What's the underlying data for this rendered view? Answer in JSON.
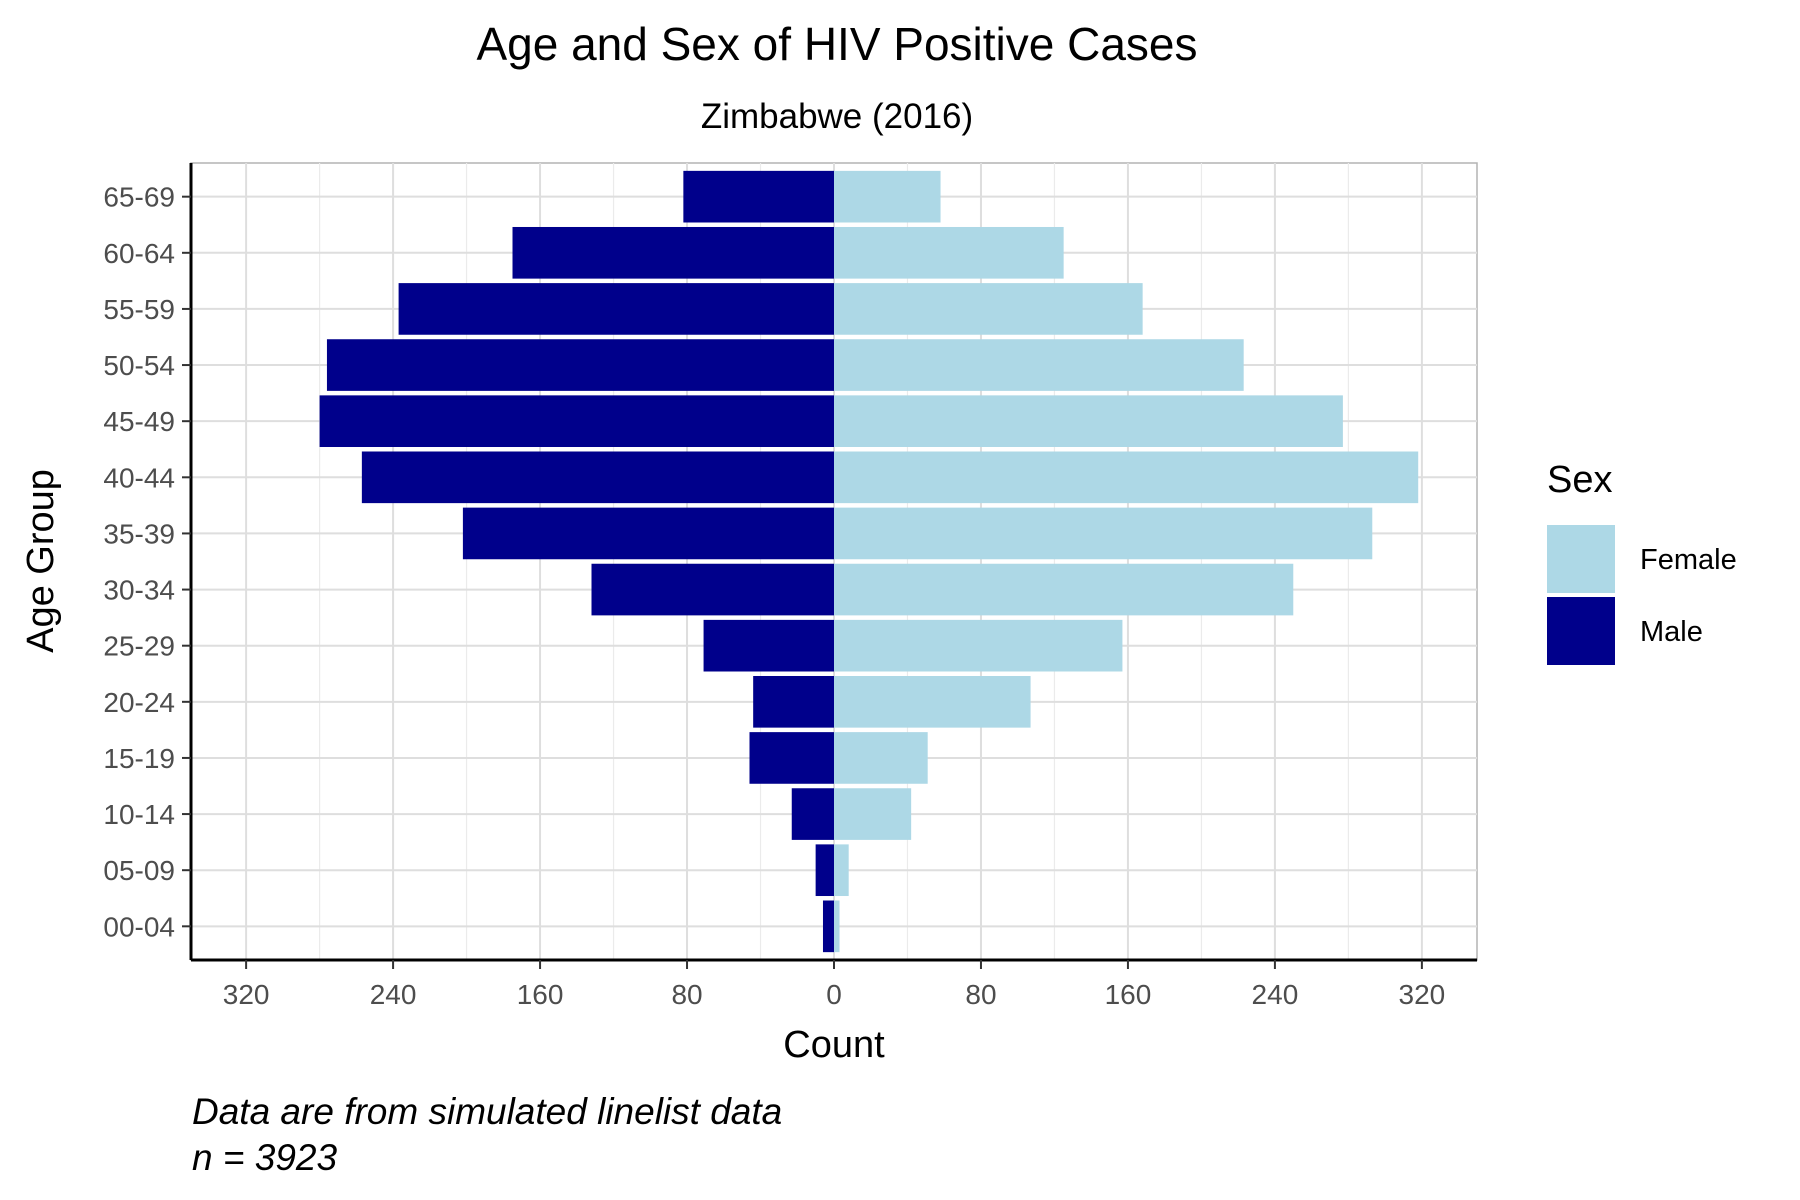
{
  "chart_data": {
    "type": "bar",
    "orientation": "horizontal",
    "title": "Age and Sex of HIV Positive Cases",
    "subtitle": "Zimbabwe (2016)",
    "xlabel": "Count",
    "ylabel": "Age Group",
    "caption": [
      "Data are from simulated linelist data",
      "n = 3923"
    ],
    "categories": [
      "00-04",
      "05-09",
      "10-14",
      "15-19",
      "20-24",
      "25-29",
      "30-34",
      "35-39",
      "40-44",
      "45-49",
      "50-54",
      "55-59",
      "60-64",
      "65-69"
    ],
    "series": [
      {
        "name": "Female",
        "color": "#add8e6",
        "values": [
          3,
          8,
          42,
          51,
          107,
          157,
          250,
          293,
          318,
          277,
          223,
          168,
          125,
          58
        ]
      },
      {
        "name": "Male",
        "color": "#00008b",
        "values": [
          6,
          10,
          23,
          46,
          44,
          71,
          132,
          202,
          257,
          280,
          276,
          237,
          175,
          82
        ]
      }
    ],
    "xlim": [
      -350,
      350
    ],
    "x_ticks": [
      -320,
      -240,
      -160,
      -80,
      0,
      80,
      160,
      240,
      320
    ],
    "x_tick_labels": [
      "320",
      "240",
      "160",
      "80",
      "0",
      "80",
      "160",
      "240",
      "320"
    ],
    "grid": true,
    "legend": {
      "title": "Sex",
      "position": "right",
      "entries": [
        "Female",
        "Male"
      ]
    }
  }
}
